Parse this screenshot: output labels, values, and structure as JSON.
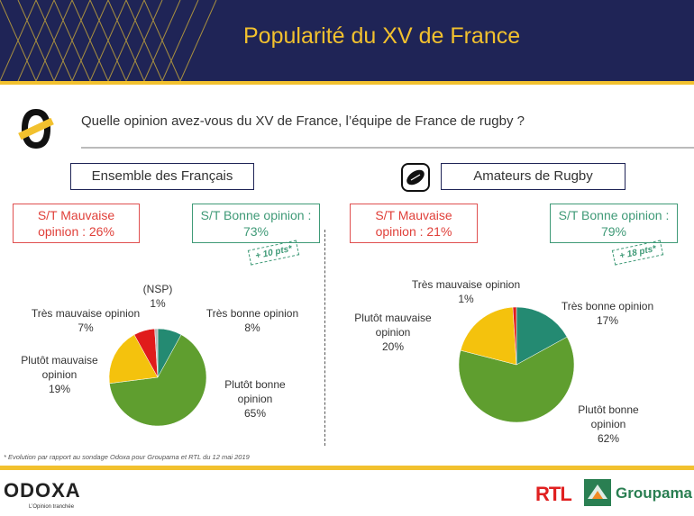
{
  "header": {
    "title": "Popularité du XV de France"
  },
  "question": "Quelle opinion avez-vous du XV de France, l’équipe de France de rugby ?",
  "colors": {
    "navy": "#1f2456",
    "gold": "#f2c12e",
    "red": "#e02020",
    "green": "#3f9a77"
  },
  "left": {
    "group_label": "Ensemble des Français",
    "st_bad": "S/T Mauvaise\nopinion : 26%",
    "st_good": "S/T Bonne opinion :\n73%",
    "evolution": "+ 10 pts*"
  },
  "right": {
    "group_label": "Amateurs de Rugby",
    "st_bad": "S/T Mauvaise\nopinion : 21%",
    "st_good": "S/T Bonne opinion :\n79%",
    "evolution": "+ 18 pts*"
  },
  "chart_data": [
    {
      "type": "pie",
      "slices": [
        {
          "label": "Très bonne opinion",
          "value": 8,
          "display": "8%",
          "color": "#248a72"
        },
        {
          "label": "Plutôt bonne opinion",
          "value": 65,
          "display": "65%",
          "color": "#5f9e2f"
        },
        {
          "label": "Plutôt mauvaise opinion",
          "value": 19,
          "display": "19%",
          "color": "#f4c20d"
        },
        {
          "label": "Très mauvaise opinion",
          "value": 7,
          "display": "7%",
          "color": "#e01b1b"
        },
        {
          "label": "(NSP)",
          "value": 1,
          "display": "1%",
          "color": "#b8b8b8"
        }
      ]
    },
    {
      "type": "pie",
      "slices": [
        {
          "label": "Très bonne opinion",
          "value": 17,
          "display": "17%",
          "color": "#248a72"
        },
        {
          "label": "Plutôt bonne opinion",
          "value": 62,
          "display": "62%",
          "color": "#5f9e2f"
        },
        {
          "label": "Plutôt mauvaise opinion",
          "value": 20,
          "display": "20%",
          "color": "#f4c20d"
        },
        {
          "label": "Très mauvaise opinion",
          "value": 1,
          "display": "1%",
          "color": "#e01b1b"
        }
      ]
    }
  ],
  "footnote": "* Evolution par rapport au sondage Odoxa pour Groupama et RTL du 12 mai 2019",
  "footer": {
    "odoxa": "ODOXA",
    "odoxa_tagline": "L’Opinion tranchée",
    "rtl": "RTL",
    "groupama": "Groupama"
  }
}
